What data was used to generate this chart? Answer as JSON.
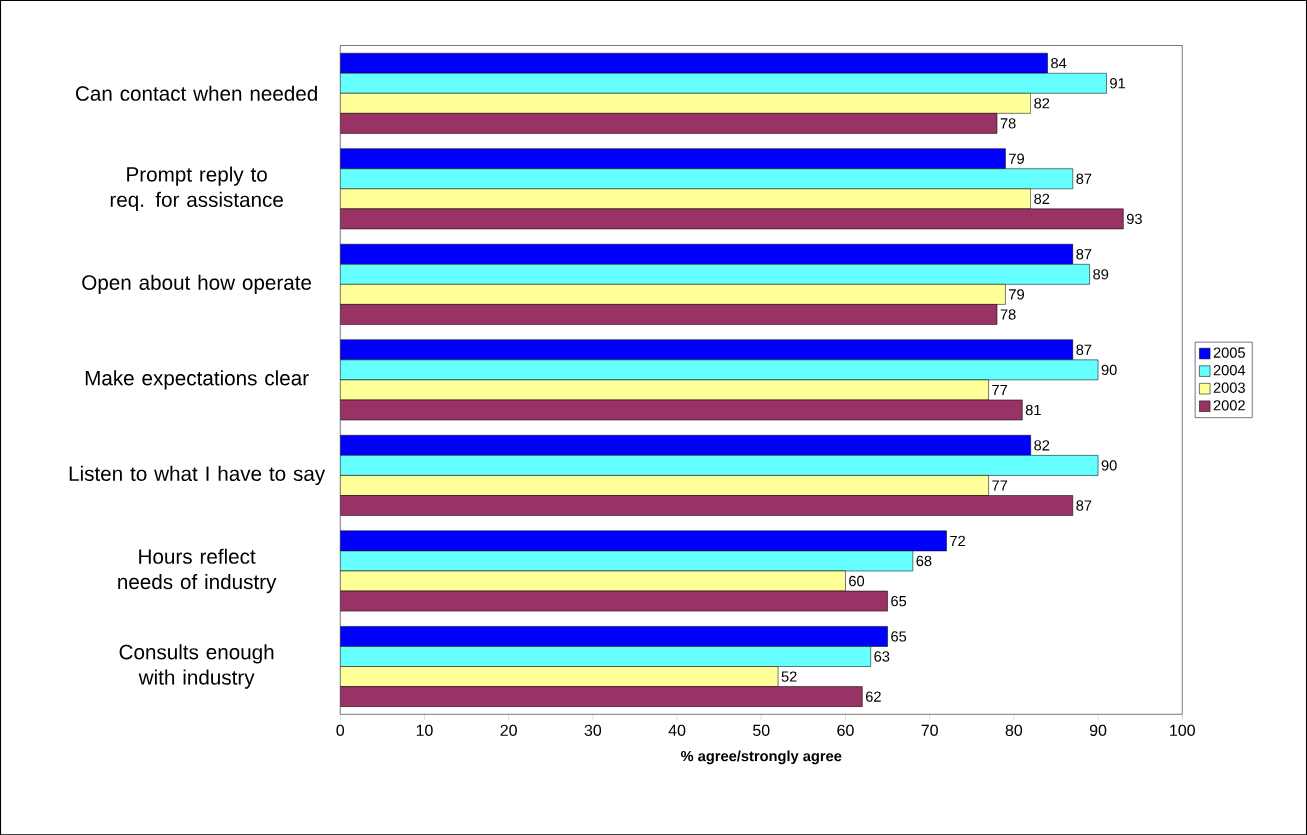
{
  "chart_data": {
    "type": "bar",
    "orientation": "horizontal",
    "xlabel": "% agree/strongly agree",
    "categories": [
      "Can contact when needed",
      "Prompt reply to req. for assistance",
      "Open about how operate",
      "Make expectations clear",
      "Listen to what I have to say",
      "Hours reflect needs of industry",
      "Consults enough with industry"
    ],
    "series": [
      {
        "name": "2005",
        "color": "#0000ff",
        "values": [
          84,
          79,
          87,
          87,
          82,
          72,
          65
        ]
      },
      {
        "name": "2004",
        "color": "#66ffff",
        "values": [
          91,
          87,
          89,
          90,
          90,
          68,
          63
        ]
      },
      {
        "name": "2003",
        "color": "#ffff99",
        "values": [
          82,
          82,
          79,
          77,
          77,
          60,
          52
        ]
      },
      {
        "name": "2002",
        "color": "#993366",
        "values": [
          78,
          93,
          78,
          81,
          87,
          65,
          62
        ]
      }
    ],
    "xlim": [
      0,
      100
    ],
    "xticks": [
      0,
      10,
      20,
      30,
      40,
      50,
      60,
      70,
      80,
      90,
      100
    ],
    "data_labels": true,
    "legend": "right",
    "grid": false
  }
}
